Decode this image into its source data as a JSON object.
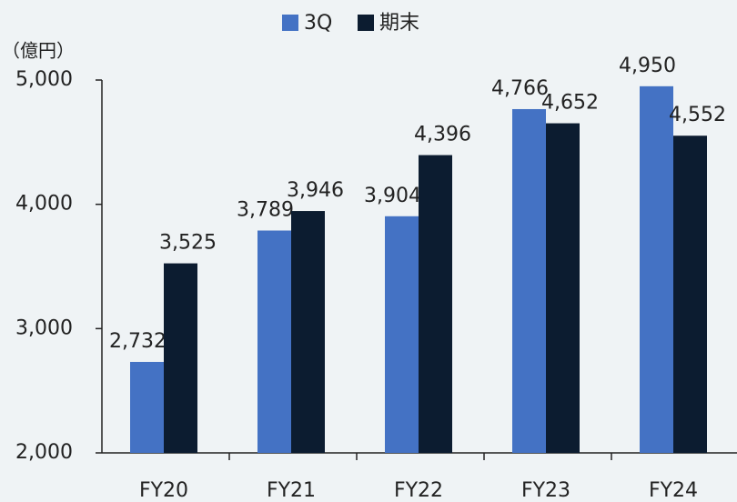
{
  "chart_data": {
    "type": "bar",
    "unit_label": "（億円）",
    "categories": [
      "FY20",
      "FY21",
      "FY22",
      "FY23",
      "FY24"
    ],
    "series": [
      {
        "name": "3Q",
        "color": "#4472c4",
        "values": [
          2732,
          3789,
          3904,
          4766,
          4950
        ],
        "value_labels": [
          "2,732",
          "3,789",
          "3,904",
          "4,766",
          "4,950"
        ]
      },
      {
        "name": "期末",
        "color": "#0c1c30",
        "values": [
          3525,
          3946,
          4396,
          4652,
          4552
        ],
        "value_labels": [
          "3,525",
          "3,946",
          "4,396",
          "4,652",
          "4,552"
        ]
      }
    ],
    "ylim": [
      2000,
      5000
    ],
    "yticks": [
      {
        "value": 2000,
        "label": "2,000"
      },
      {
        "value": 3000,
        "label": "3,000"
      },
      {
        "value": 4000,
        "label": "4,000"
      },
      {
        "value": 5000,
        "label": "5,000"
      }
    ],
    "legend": "top"
  }
}
